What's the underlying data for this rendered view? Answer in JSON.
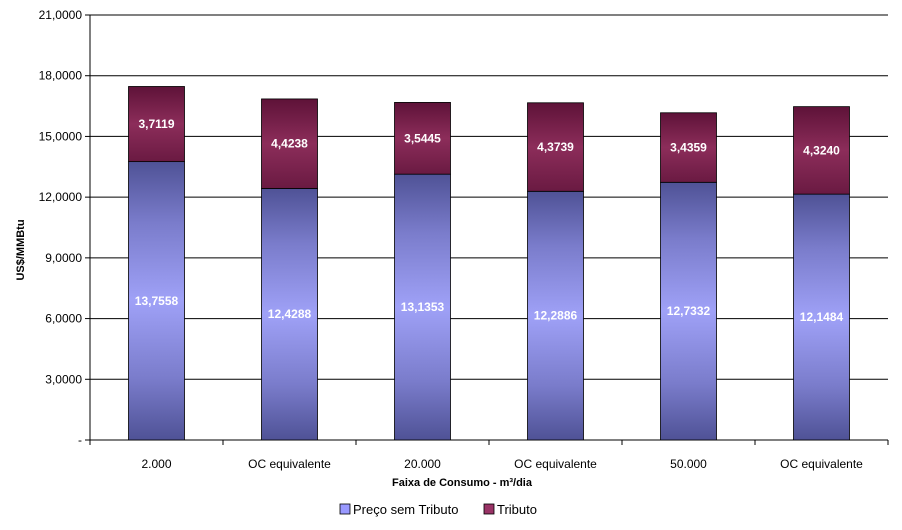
{
  "chart_data": {
    "type": "bar",
    "stacked": true,
    "categories": [
      "2.000",
      "OC equivalente",
      "20.000",
      "OC equivalente",
      "50.000",
      "OC equivalente"
    ],
    "series": [
      {
        "name": "Preço sem Tributo",
        "values": [
          13.7558,
          12.4288,
          13.1353,
          12.2886,
          12.7332,
          12.1484
        ],
        "labels": [
          "13,7558",
          "12,4288",
          "13,1353",
          "12,2886",
          "12,7332",
          "12,1484"
        ],
        "color": "#9999ff"
      },
      {
        "name": "Tributo",
        "values": [
          3.7119,
          4.4238,
          3.5445,
          4.3739,
          3.4359,
          4.324
        ],
        "labels": [
          "3,7119",
          "4,4238",
          "3,5445",
          "4,3739",
          "3,4359",
          "4,3240"
        ],
        "color": "#993366"
      }
    ],
    "title": "",
    "xlabel": "Faixa de Consumo - m³/dia",
    "ylabel": "US$/MMBtu",
    "ylim": [
      0,
      21
    ],
    "yticks": [
      0,
      3,
      6,
      9,
      12,
      15,
      18,
      21
    ],
    "ytick_labels": [
      "-",
      "3,0000",
      "6,0000",
      "9,0000",
      "12,0000",
      "15,0000",
      "18,0000",
      "21,0000"
    ],
    "grid": true,
    "legend_position": "bottom"
  }
}
